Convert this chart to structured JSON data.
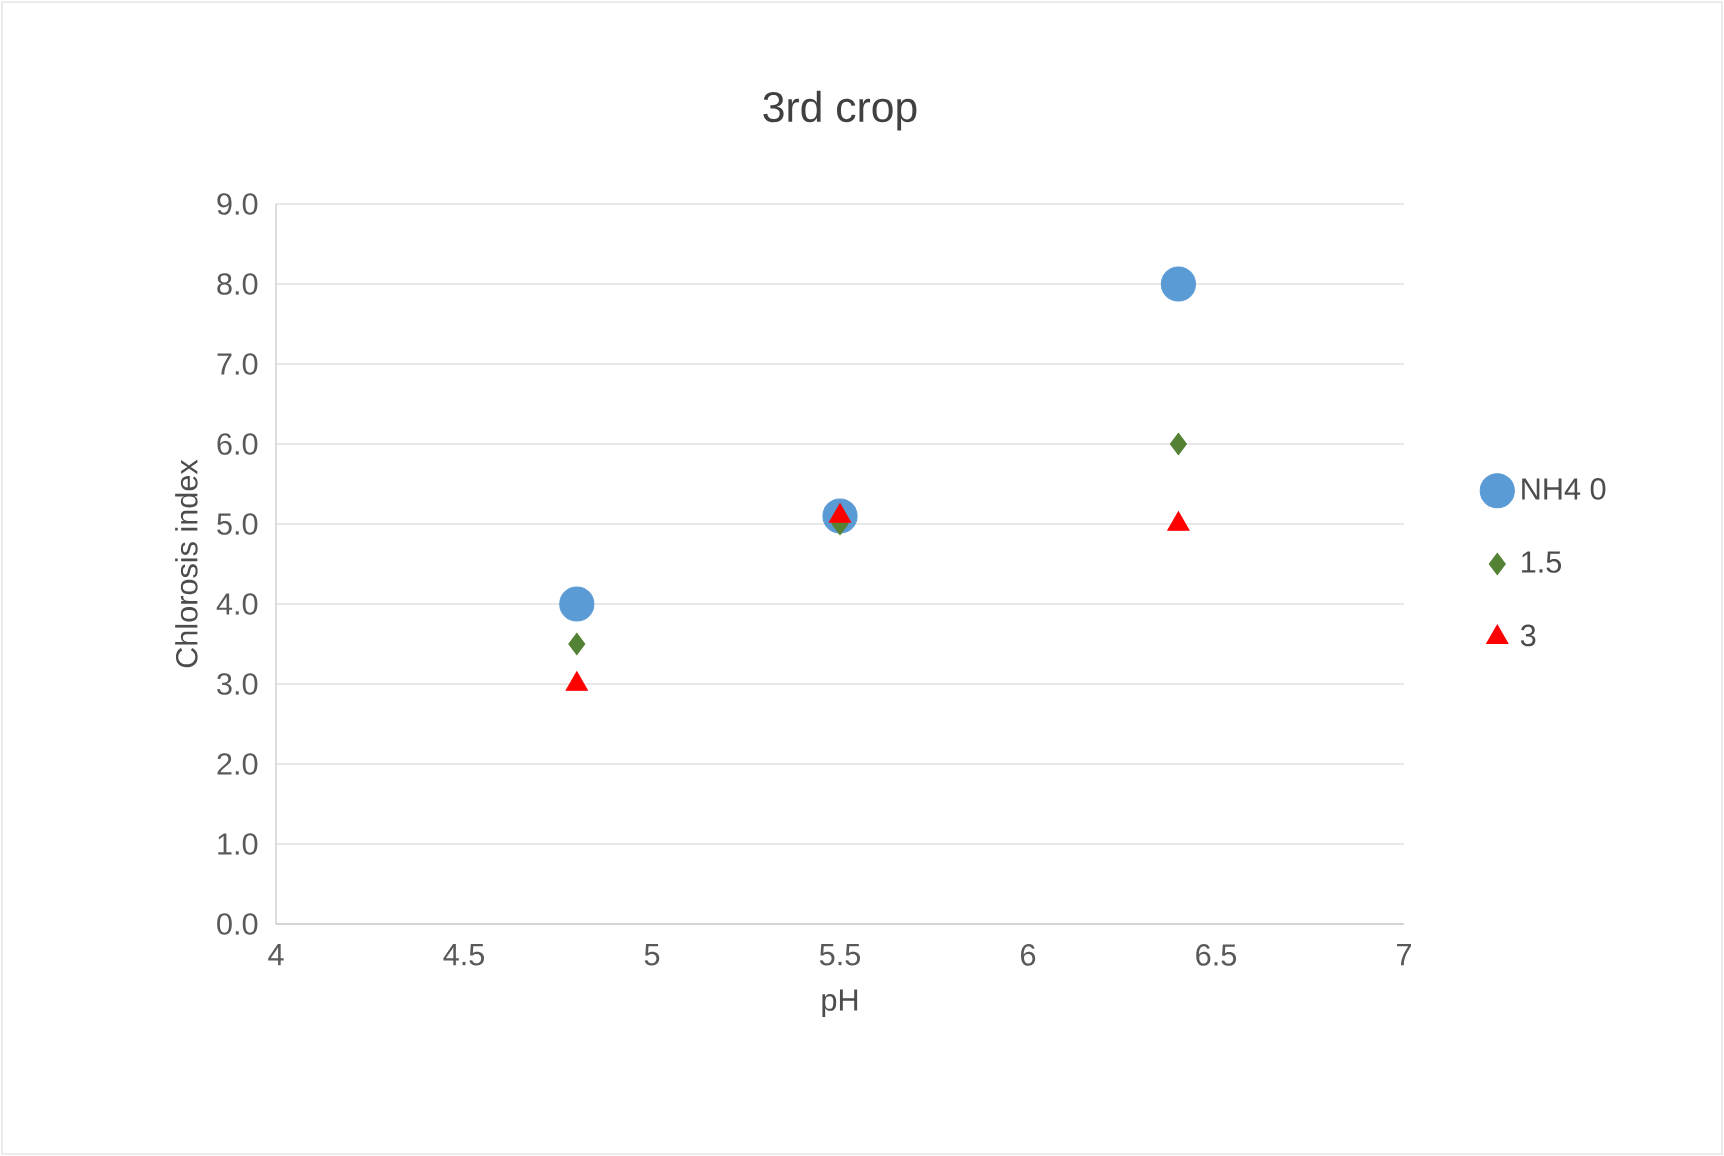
{
  "chart_data": {
    "type": "scatter",
    "title": "3rd crop",
    "xlabel": "pH",
    "ylabel": "Chlorosis index",
    "xlim": [
      4,
      7
    ],
    "xticks": [
      4,
      4.5,
      5,
      5.5,
      6,
      6.5,
      7
    ],
    "ylim": [
      0,
      9
    ],
    "yticks": [
      {
        "value": 0,
        "label": "0.0"
      },
      {
        "value": 1,
        "label": "1.0"
      },
      {
        "value": 2,
        "label": "2.0"
      },
      {
        "value": 3,
        "label": "3.0"
      },
      {
        "value": 4,
        "label": "4.0"
      },
      {
        "value": 5,
        "label": "5.0"
      },
      {
        "value": 6,
        "label": "6.0"
      },
      {
        "value": 7,
        "label": "7.0"
      },
      {
        "value": 8,
        "label": "8.0"
      },
      {
        "value": 9,
        "label": "9.0"
      }
    ],
    "grid": "y",
    "legend": "right",
    "series": [
      {
        "name": "NH4 0",
        "color": "#5b9bd5",
        "marker": "circle",
        "x": [
          4.8,
          5.5,
          6.4
        ],
        "values": [
          4.0,
          5.1,
          8.0
        ]
      },
      {
        "name": "1.5",
        "color": "#548235",
        "marker": "diamond",
        "x": [
          4.8,
          5.5,
          6.4
        ],
        "values": [
          3.5,
          5.0,
          6.0
        ]
      },
      {
        "name": "3",
        "color": "#ff0000",
        "marker": "triangle",
        "x": [
          4.8,
          5.5,
          6.4
        ],
        "values": [
          3.0,
          5.1,
          5.0
        ]
      }
    ]
  }
}
